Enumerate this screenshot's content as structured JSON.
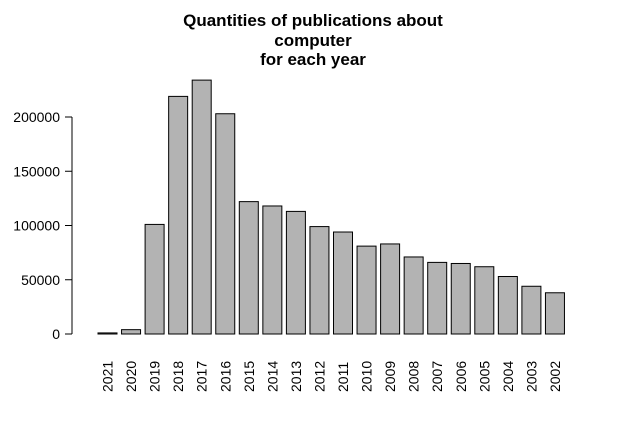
{
  "chart_data": {
    "type": "bar",
    "title": "Quantities of publications about\ncomputer\nfor each year",
    "title_lines": [
      "Quantities of publications about",
      "computer",
      "for each year"
    ],
    "xlabel": "",
    "ylabel": "",
    "categories": [
      "2021",
      "2020",
      "2019",
      "2018",
      "2017",
      "2016",
      "2015",
      "2014",
      "2013",
      "2012",
      "2011",
      "2010",
      "2009",
      "2008",
      "2007",
      "2006",
      "2005",
      "2004",
      "2003",
      "2002"
    ],
    "values": [
      1000,
      4000,
      101000,
      219000,
      234000,
      203000,
      122000,
      118000,
      113000,
      99000,
      94000,
      81000,
      83000,
      71000,
      66000,
      65000,
      62000,
      53000,
      44000,
      38000
    ],
    "yticks": [
      0,
      50000,
      100000,
      150000,
      200000
    ],
    "ytick_labels": [
      "0",
      "50000",
      "100000",
      "150000",
      "200000"
    ],
    "ylim": [
      0,
      234000
    ],
    "bar_color": "#b3b3b3",
    "bar_border_color": "#000000",
    "grid": false,
    "legend": "none"
  }
}
